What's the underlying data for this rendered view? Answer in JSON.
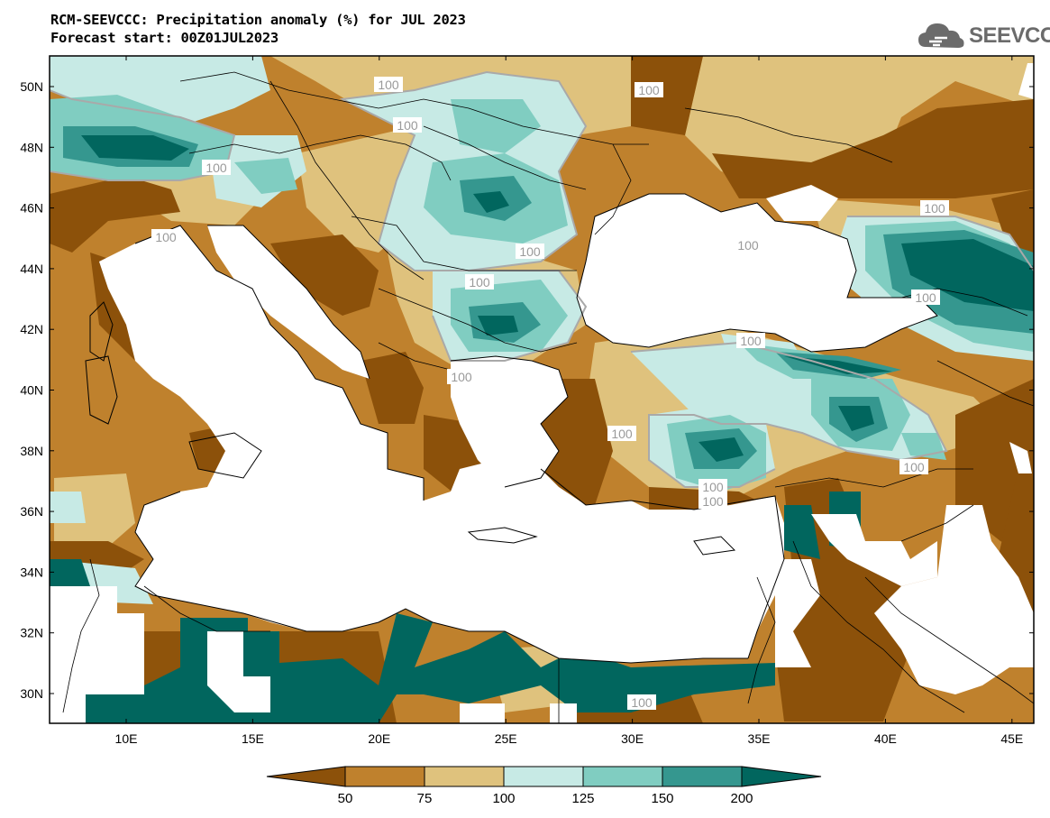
{
  "title": {
    "line1": "RCM-SEEVCCC: Precipitation anomaly (%) for JUL 2023",
    "line2": "Forecast start: 00Z01JUL2023"
  },
  "logo": {
    "text": "SEEVCCC",
    "icon": "cloud-icon"
  },
  "map": {
    "lat_labels": [
      "50N",
      "48N",
      "46N",
      "44N",
      "42N",
      "40N",
      "38N",
      "36N",
      "34N",
      "32N",
      "30N"
    ],
    "lon_labels": [
      "10E",
      "15E",
      "20E",
      "25E",
      "30E",
      "35E",
      "40E",
      "45E"
    ],
    "contour_labels": [
      "100",
      "100",
      "100",
      "100",
      "100",
      "100",
      "100",
      "100",
      "100",
      "100",
      "100",
      "100",
      "100",
      "100",
      "100",
      "100",
      "100"
    ]
  },
  "colorbar": {
    "ticks": [
      "50",
      "75",
      "100",
      "125",
      "150",
      "200"
    ],
    "colors": {
      "below_50": "#8c510a",
      "50_75": "#bf812d",
      "75_100": "#dfc27d",
      "100_125": "#c7eae5",
      "125_150": "#80cdc1",
      "150_200": "#35978f",
      "above_200": "#01665e"
    }
  },
  "colors": {
    "land_mask": "#ffffff",
    "border": "#000000",
    "contour_100": "#a9a9a9"
  }
}
